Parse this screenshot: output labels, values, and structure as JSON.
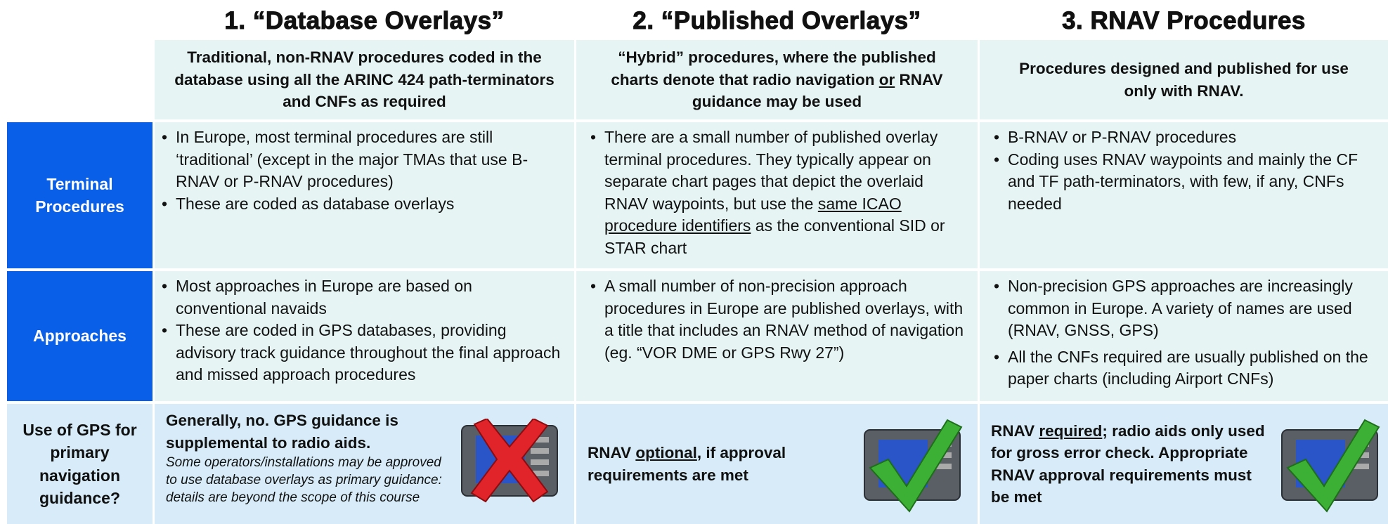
{
  "columns": [
    {
      "title": "1. “Database Overlays”",
      "subtitle": "Traditional, non-RNAV procedures coded in the database using all the ARINC 424 path-terminators and CNFs as required"
    },
    {
      "title": "2. “Published Overlays”",
      "subtitle": [
        "“Hybrid” procedures, where the published charts denote that radio navigation ",
        "or",
        " RNAV guidance may be used"
      ]
    },
    {
      "title": "3. RNAV Procedures",
      "subtitle": "Procedures designed and published for use only with RNAV."
    }
  ],
  "rows": [
    {
      "header": "Terminal Procedures",
      "cells": [
        [
          "In Europe, most terminal procedures are still ‘traditional’ (except in the major TMAs that use B-RNAV or P-RNAV procedures)",
          "These are coded as database overlays"
        ],
        [
          [
            "There are a small number of published overlay terminal procedures. They typically appear on separate chart pages that depict the overlaid RNAV waypoints, but use the ",
            "same ICAO procedure identifiers",
            " as the conventional SID or STAR chart"
          ]
        ],
        [
          "B-RNAV or P-RNAV procedures",
          "Coding uses RNAV waypoints and mainly the CF and TF path-terminators, with few, if any, CNFs needed"
        ]
      ]
    },
    {
      "header": "Approaches",
      "cells": [
        [
          "Most approaches in Europe are based on conventional navaids",
          "These are coded in GPS databases, providing advisory track guidance throughout the final approach and missed approach procedures"
        ],
        [
          "A small number of non-precision approach procedures in Europe are published overlays, with a title that includes an RNAV method of navigation (eg. “VOR DME or GPS Rwy 27”)"
        ],
        [
          "Non-precision GPS approaches are increasingly common in Europe. A variety of names are used (RNAV, GNSS, GPS)",
          "All the CNFs required are usually published on the paper charts (including Airport CNFs)"
        ]
      ]
    },
    {
      "header": "Use of GPS for primary navigation guidance?",
      "cells": [
        {
          "bold": "Generally, no. GPS guidance is supplemental to radio aids.",
          "italic": "Some operators/installations may be approved to use database overlays as primary guidance: details are beyond the scope of this course"
        },
        [
          "RNAV ",
          "optional",
          ", if approval requirements are met"
        ],
        [
          "RNAV ",
          "required",
          "; radio aids only used for gross error check. Appropriate RNAV approval requirements must be met"
        ]
      ]
    }
  ]
}
